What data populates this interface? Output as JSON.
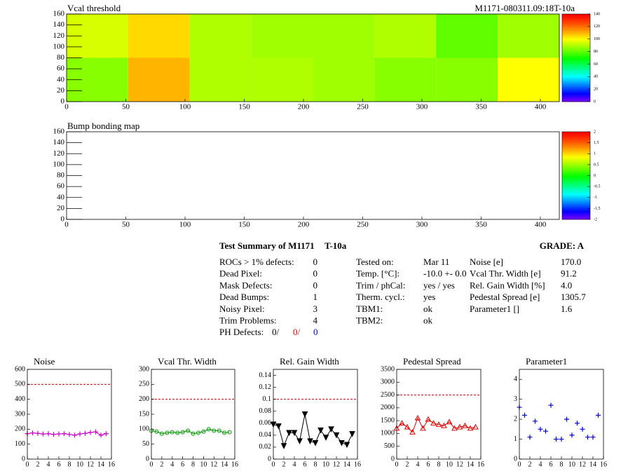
{
  "chart_data": [
    {
      "type": "heatmap",
      "title": "Vcal threshold",
      "subtitle": "M1171-080311.09:18T-10a",
      "xbins": [
        0,
        52,
        104,
        156,
        208,
        260,
        312,
        364,
        416
      ],
      "ybins": [
        0,
        80,
        160
      ],
      "values": [
        [
          85,
          110,
          90,
          90,
          88,
          85,
          85,
          100
        ],
        [
          95,
          105,
          90,
          88,
          88,
          90,
          80,
          88
        ]
      ],
      "xlim": [
        0,
        416
      ],
      "ylim": [
        0,
        160
      ],
      "xticks": [
        0,
        50,
        100,
        150,
        200,
        250,
        300,
        350,
        400
      ],
      "yticks": [
        0,
        20,
        40,
        60,
        80,
        100,
        120,
        140,
        160
      ],
      "zlim": [
        0,
        140
      ],
      "zticks": [
        0,
        20,
        40,
        60,
        80,
        100,
        120,
        140
      ]
    },
    {
      "type": "heatmap",
      "title": "Bump bonding map",
      "xbins": [
        0,
        52,
        104,
        156,
        208,
        260,
        312,
        364,
        416
      ],
      "ybins": [
        0,
        80,
        160
      ],
      "values": [
        [
          null,
          null,
          null,
          null,
          null,
          null,
          null,
          null
        ],
        [
          null,
          null,
          null,
          null,
          null,
          null,
          null,
          null
        ]
      ],
      "xlim": [
        0,
        416
      ],
      "ylim": [
        0,
        160
      ],
      "xticks": [
        0,
        50,
        100,
        150,
        200,
        250,
        300,
        350,
        400
      ],
      "yticks": [
        0,
        20,
        40,
        60,
        80,
        100,
        120,
        140,
        160
      ],
      "zlim": [
        -2,
        2
      ],
      "zticks": [
        -2,
        -1.5,
        -1,
        -0.5,
        0,
        0.5,
        1,
        1.5,
        2
      ]
    },
    {
      "type": "line",
      "title": "Noise",
      "color": "#cc00cc",
      "marker": "plus",
      "connect": true,
      "x": [
        0,
        1,
        2,
        3,
        4,
        5,
        6,
        7,
        8,
        9,
        10,
        11,
        12,
        13,
        14,
        15
      ],
      "values": [
        170,
        175,
        172,
        168,
        170,
        165,
        168,
        170,
        165,
        160,
        168,
        172,
        178,
        182,
        160,
        170
      ],
      "threshold": 500,
      "xlim": [
        0,
        16
      ],
      "xticks": [
        0,
        2,
        4,
        6,
        8,
        10,
        12,
        14,
        16
      ],
      "ylim": [
        0,
        600
      ],
      "yticks": [
        0,
        100,
        200,
        300,
        400,
        500,
        600
      ]
    },
    {
      "type": "line",
      "title": "Vcal Thr. Width",
      "color": "#009900",
      "marker": "circle",
      "connect": true,
      "x": [
        0,
        1,
        2,
        3,
        4,
        5,
        6,
        7,
        8,
        9,
        10,
        11,
        12,
        13,
        14,
        15
      ],
      "values": [
        95,
        92,
        85,
        88,
        90,
        88,
        90,
        95,
        85,
        88,
        92,
        100,
        95,
        95,
        88,
        90
      ],
      "threshold": 200,
      "xlim": [
        0,
        16
      ],
      "xticks": [
        0,
        2,
        4,
        6,
        8,
        10,
        12,
        14,
        16
      ],
      "ylim": [
        0,
        300
      ],
      "yticks": [
        0,
        50,
        100,
        150,
        200,
        250,
        300
      ]
    },
    {
      "type": "line",
      "title": "Rel. Gain Width",
      "color": "#000000",
      "marker": "tridown",
      "connect": true,
      "x": [
        0,
        1,
        2,
        3,
        4,
        5,
        6,
        7,
        8,
        9,
        10,
        11,
        12,
        13,
        14,
        15
      ],
      "values": [
        0.058,
        0.055,
        0.022,
        0.044,
        0.044,
        0.03,
        0.075,
        0.03,
        0.027,
        0.048,
        0.036,
        0.05,
        0.04,
        0.027,
        0.024,
        0.042
      ],
      "threshold": 0.1,
      "xlim": [
        0,
        16
      ],
      "xticks": [
        0,
        2,
        4,
        6,
        8,
        10,
        12,
        14,
        16
      ],
      "ylim": [
        0,
        0.15
      ],
      "yticks": [
        0,
        0.02,
        0.04,
        0.06,
        0.08,
        0.1,
        0.12,
        0.14
      ]
    },
    {
      "type": "line",
      "title": "Pedestal Spread",
      "color": "#dd0000",
      "marker": "tri",
      "connect": true,
      "x": [
        0,
        1,
        2,
        3,
        4,
        5,
        6,
        7,
        8,
        9,
        10,
        11,
        12,
        13,
        14,
        15
      ],
      "values": [
        1200,
        1400,
        1250,
        1050,
        1600,
        1200,
        1550,
        1400,
        1350,
        1300,
        1450,
        1200,
        1250,
        1300,
        1200,
        1250
      ],
      "threshold": 2500,
      "xlim": [
        0,
        16
      ],
      "xticks": [
        0,
        2,
        4,
        6,
        8,
        10,
        12,
        14,
        16
      ],
      "ylim": [
        0,
        3500
      ],
      "yticks": [
        0,
        500,
        1000,
        1500,
        2000,
        2500,
        3000,
        3500
      ]
    },
    {
      "type": "line",
      "title": "Parameter1",
      "color": "#0000cc",
      "marker": "plus",
      "connect": false,
      "x": [
        0,
        1,
        2,
        3,
        4,
        5,
        6,
        7,
        8,
        9,
        10,
        11,
        12,
        13,
        14,
        15
      ],
      "values": [
        2.6,
        2.2,
        1.1,
        1.9,
        1.5,
        1.4,
        2.7,
        1.0,
        1.0,
        2.0,
        1.2,
        1.8,
        1.5,
        1.1,
        1.1,
        2.2
      ],
      "xlim": [
        0,
        16
      ],
      "xticks": [
        0,
        2,
        4,
        6,
        8,
        10,
        12,
        14,
        16
      ],
      "ylim": [
        0,
        4.5
      ],
      "yticks": [
        0,
        1,
        2,
        3,
        4
      ]
    }
  ],
  "summary": {
    "title": "Test Summary of M1171",
    "tag": "T-10a",
    "grade": "GRADE:  A",
    "left": [
      [
        "ROCs > 1% defects:",
        "0"
      ],
      [
        "Dead Pixel:",
        "0"
      ],
      [
        "Mask Defects:",
        "0"
      ],
      [
        "Dead Bumps:",
        "1"
      ],
      [
        "Noisy Pixel:",
        "3"
      ],
      [
        "Trim Problems:",
        "4"
      ]
    ],
    "ph_defects": {
      "label": "PH Defects:",
      "values": [
        "0/",
        "0/",
        "0"
      ]
    },
    "middle": [
      [
        "Tested on:",
        "Mar 11"
      ],
      [
        "Temp. [°C]:",
        "-10.0 +- 0.0"
      ],
      [
        "Trim / phCal:",
        "yes / yes"
      ],
      [
        "Therm. cycl.:",
        "yes"
      ],
      [
        "TBM1:",
        "ok"
      ],
      [
        "TBM2:",
        "ok"
      ]
    ],
    "right": [
      [
        "Noise [e]",
        "170.0"
      ],
      [
        "Vcal Thr. Width [e]",
        "91.2"
      ],
      [
        "Rel. Gain Width [%]",
        "4.0"
      ],
      [
        "Pedestal Spread [e]",
        "1305.7"
      ],
      [
        "Parameter1 []",
        "1.6"
      ]
    ]
  }
}
